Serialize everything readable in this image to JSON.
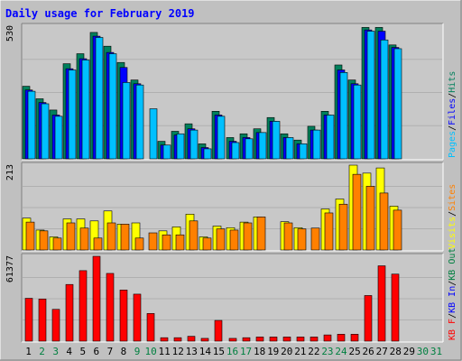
{
  "chart_data": {
    "type": "bar",
    "title": "Daily usage for February 2019",
    "days": [
      "1",
      "2",
      "3",
      "4",
      "5",
      "6",
      "7",
      "8",
      "9",
      "10",
      "11",
      "12",
      "13",
      "14",
      "15",
      "16",
      "17",
      "18",
      "19",
      "20",
      "21",
      "22",
      "23",
      "24",
      "25",
      "26",
      "27",
      "28",
      "29",
      "30",
      "31"
    ],
    "weekend_days": [
      "2",
      "3",
      "9",
      "10",
      "16",
      "17",
      "23",
      "24",
      "30",
      "31"
    ],
    "colors": {
      "title": "#0000ff",
      "background": "#c0c0c0",
      "plot_background": "#c8c8c8",
      "weekday_label": "#000000",
      "weekend_label": "#008040",
      "hits": "#00805c",
      "files": "#0000ff",
      "pages": "#00c0ff",
      "visits": "#ffff00",
      "sites": "#ff8000",
      "kbytes": "#ff0000"
    },
    "panels": [
      {
        "id": "hits-files-pages",
        "max_label": "530",
        "max": 530,
        "legend": [
          {
            "label": "Pages",
            "color": "#00c0ff"
          },
          {
            "label": "/",
            "color": "#000000"
          },
          {
            "label": "Files",
            "color": "#0000ff"
          },
          {
            "label": "/",
            "color": "#000000"
          },
          {
            "label": "Hits",
            "color": "#00805c"
          }
        ],
        "series": [
          {
            "name": "Hits",
            "color": "#00805c",
            "values": [
              290,
              240,
              195,
              380,
              420,
              505,
              450,
              385,
              315,
              0,
              70,
              110,
              140,
              60,
              190,
              85,
              100,
              120,
              165,
              100,
              75,
              130,
              190,
              375,
              315,
              525,
              525,
              455,
              0,
              0,
              0
            ]
          },
          {
            "name": "Files",
            "color": "#0000ff",
            "values": [
              275,
              225,
              175,
              360,
              400,
              490,
              425,
              365,
              300,
              0,
              55,
              95,
              120,
              45,
              175,
              70,
              85,
              105,
              150,
              85,
              60,
              115,
              175,
              355,
              300,
              515,
              510,
              445,
              0,
              0,
              0
            ]
          },
          {
            "name": "Pages",
            "color": "#00c0ff",
            "values": [
              270,
              220,
              170,
              355,
              395,
              485,
              420,
              305,
              295,
              200,
              55,
              100,
              115,
              40,
              170,
              65,
              80,
              105,
              150,
              85,
              60,
              115,
              175,
              345,
              295,
              510,
              475,
              440,
              0,
              0,
              0
            ]
          }
        ]
      },
      {
        "id": "visits-sites",
        "max_label": "213",
        "max": 213,
        "legend": [
          {
            "label": "Visits",
            "color": "#ffff00"
          },
          {
            "label": "/",
            "color": "#000000"
          },
          {
            "label": "Sites",
            "color": "#ff8000"
          }
        ],
        "series": [
          {
            "name": "Visits",
            "color": "#ffff00",
            "values": [
              80,
              50,
              33,
              78,
              78,
              73,
              98,
              65,
              68,
              0,
              48,
              58,
              90,
              33,
              60,
              56,
              70,
              83,
              0,
              71,
              56,
              0,
              103,
              128,
              213,
              193,
              206,
              110,
              0,
              0,
              0
            ]
          },
          {
            "name": "Sites",
            "color": "#ff8000",
            "values": [
              70,
              48,
              30,
              68,
              55,
              30,
              68,
              65,
              30,
              43,
              38,
              38,
              73,
              30,
              53,
              50,
              68,
              83,
              0,
              68,
              53,
              55,
              93,
              115,
              190,
              160,
              143,
              100,
              0,
              0,
              0
            ]
          }
        ]
      },
      {
        "id": "kbytes",
        "max_label": "61377",
        "max": 61377,
        "legend": [
          {
            "label": "KB F",
            "color": "#ff0000"
          },
          {
            "label": "/",
            "color": "#000000"
          },
          {
            "label": "KB In",
            "color": "#0000ff"
          },
          {
            "label": "/",
            "color": "#000000"
          },
          {
            "label": "KB Out",
            "color": "#008040"
          }
        ],
        "series": [
          {
            "name": "KB F",
            "color": "#ff0000",
            "values": [
              31000,
              30500,
              23000,
              41000,
              51000,
              61377,
              49000,
              37000,
              34000,
              20000,
              2500,
              2500,
              3500,
              2000,
              15000,
              2000,
              2500,
              3000,
              3000,
              3000,
              3000,
              3000,
              4500,
              5000,
              5000,
              33000,
              54500,
              48500,
              0,
              0,
              0
            ]
          }
        ]
      }
    ]
  }
}
